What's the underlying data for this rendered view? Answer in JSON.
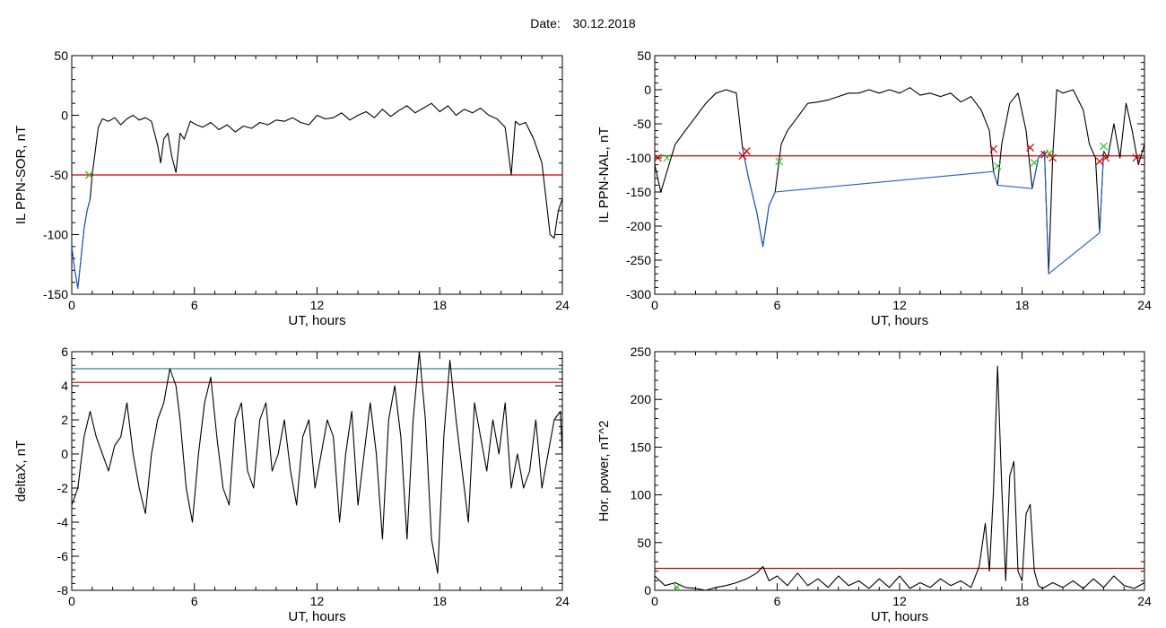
{
  "header": {
    "date_label": "Date:",
    "date_value": "30.12.2018"
  },
  "chart_data": [
    {
      "type": "line",
      "id": "p1",
      "xlabel": "UT, hours",
      "ylabel": "IL PPN-SOR, nT",
      "xlim": [
        0,
        24
      ],
      "ylim": [
        -150,
        50
      ],
      "xticks": [
        0,
        6,
        12,
        18,
        24
      ],
      "yticks": [
        -150,
        -100,
        -50,
        0,
        50
      ],
      "threshold_lines": [
        {
          "y": -50,
          "color": "#cc0000"
        }
      ],
      "series": [
        {
          "color": "#000000",
          "x": [
            0,
            0.15,
            0.3,
            0.45,
            0.6,
            0.75,
            0.9,
            1.0,
            1.15,
            1.3,
            1.5,
            1.8,
            2.1,
            2.4,
            2.7,
            3.0,
            3.3,
            3.6,
            3.9,
            4.2,
            4.35,
            4.5,
            4.7,
            4.9,
            5.1,
            5.3,
            5.5,
            5.8,
            6.1,
            6.4,
            6.8,
            7.2,
            7.6,
            8.0,
            8.4,
            8.8,
            9.2,
            9.6,
            10.0,
            10.4,
            10.8,
            11.2,
            11.6,
            12.0,
            12.4,
            12.8,
            13.2,
            13.6,
            14.0,
            14.4,
            14.8,
            15.2,
            15.6,
            16.0,
            16.4,
            16.8,
            17.2,
            17.6,
            18.0,
            18.4,
            18.8,
            19.2,
            19.6,
            20.0,
            20.4,
            20.8,
            21.2,
            21.5,
            21.7,
            21.9,
            22.2,
            22.6,
            23.0,
            23.2,
            23.4,
            23.6,
            23.8,
            24.0
          ],
          "y": [
            -110,
            -130,
            -145,
            -120,
            -95,
            -80,
            -70,
            -50,
            -30,
            -10,
            -3,
            -5,
            -2,
            -8,
            -3,
            0,
            -4,
            -2,
            -5,
            -25,
            -40,
            -20,
            -15,
            -35,
            -48,
            -15,
            -20,
            -5,
            -8,
            -10,
            -6,
            -12,
            -8,
            -14,
            -9,
            -11,
            -6,
            -8,
            -4,
            -5,
            -2,
            -6,
            -8,
            0,
            -3,
            -2,
            2,
            -4,
            0,
            3,
            -2,
            5,
            -1,
            4,
            8,
            2,
            6,
            10,
            3,
            8,
            0,
            5,
            2,
            6,
            0,
            -3,
            -10,
            -50,
            -5,
            -8,
            -6,
            -20,
            -40,
            -70,
            -100,
            -103,
            -80,
            -70
          ]
        },
        {
          "color": "#1f5fcf",
          "x": [
            0,
            0.15,
            0.3,
            0.45,
            0.6,
            0.75,
            0.9
          ],
          "y": [
            -110,
            -130,
            -145,
            -120,
            -95,
            -80,
            -70
          ]
        }
      ],
      "markers": [
        {
          "x": 0.85,
          "y": -50,
          "color": "#cc0000"
        },
        {
          "x": 0.85,
          "y": -50,
          "color": "#2ec82e"
        }
      ]
    },
    {
      "type": "line",
      "id": "p2",
      "xlabel": "UT, hours",
      "ylabel": "IL PPN-NAL, nT",
      "xlim": [
        0,
        24
      ],
      "ylim": [
        -300,
        50
      ],
      "xticks": [
        0,
        6,
        12,
        18,
        24
      ],
      "yticks": [
        -300,
        -250,
        -200,
        -150,
        -100,
        -50,
        0,
        50
      ],
      "threshold_lines": [
        {
          "y": -97,
          "color": "#cc0000"
        }
      ],
      "series": [
        {
          "color": "#000000",
          "x": [
            0,
            0.3,
            0.6,
            1.0,
            1.5,
            2.0,
            2.5,
            3.0,
            3.5,
            4.0,
            4.3,
            4.6,
            5.0,
            5.3,
            5.6,
            5.9,
            6.2,
            6.5,
            7.0,
            7.5,
            8.0,
            8.5,
            9.0,
            9.5,
            10.0,
            10.5,
            11.0,
            11.5,
            12.0,
            12.5,
            13.0,
            13.5,
            14.0,
            14.5,
            15.0,
            15.5,
            16.0,
            16.4,
            16.6,
            16.8,
            17.0,
            17.4,
            17.8,
            18.2,
            18.5,
            18.8,
            19.1,
            19.3,
            19.5,
            19.7,
            20.0,
            20.5,
            21.0,
            21.3,
            21.6,
            21.8,
            22.0,
            22.2,
            22.5,
            22.8,
            23.1,
            23.4,
            23.7,
            24.0
          ],
          "y": [
            -110,
            -150,
            -120,
            -80,
            -60,
            -40,
            -20,
            -5,
            0,
            -5,
            -85,
            -130,
            -180,
            -230,
            -170,
            -150,
            -80,
            -60,
            -40,
            -20,
            -18,
            -15,
            -10,
            -5,
            -5,
            0,
            -5,
            0,
            -5,
            3,
            -8,
            -5,
            -10,
            -5,
            -18,
            -10,
            -30,
            -60,
            -120,
            -140,
            -80,
            -20,
            -5,
            -60,
            -145,
            -100,
            -90,
            -270,
            -100,
            0,
            -5,
            0,
            -30,
            -80,
            -100,
            -210,
            -90,
            -100,
            -50,
            -100,
            -20,
            -60,
            -110,
            -80
          ]
        },
        {
          "color": "#1f5fcf",
          "x": [
            4.3,
            4.6,
            5.0,
            5.3,
            5.6,
            5.9,
            16.6,
            16.8,
            18.5,
            18.8,
            19.1,
            19.3,
            21.8,
            22.0
          ],
          "y": [
            -85,
            -130,
            -180,
            -230,
            -170,
            -150,
            -120,
            -140,
            -145,
            -100,
            -90,
            -270,
            -210,
            -90
          ]
        }
      ],
      "markers": [
        {
          "x": 0.15,
          "y": -100,
          "color": "#cc0000"
        },
        {
          "x": 4.3,
          "y": -97,
          "color": "#cc0000"
        },
        {
          "x": 4.5,
          "y": -90,
          "color": "#cc0000"
        },
        {
          "x": 6.1,
          "y": -105,
          "color": "#2ec82e"
        },
        {
          "x": 16.6,
          "y": -87,
          "color": "#cc0000"
        },
        {
          "x": 16.8,
          "y": -112,
          "color": "#2ec82e"
        },
        {
          "x": 18.4,
          "y": -85,
          "color": "#cc0000"
        },
        {
          "x": 18.6,
          "y": -107,
          "color": "#2ec82e"
        },
        {
          "x": 19.1,
          "y": -95,
          "color": "#cc0000"
        },
        {
          "x": 19.35,
          "y": -93,
          "color": "#2ec82e"
        },
        {
          "x": 19.5,
          "y": -100,
          "color": "#cc0000"
        },
        {
          "x": 21.8,
          "y": -105,
          "color": "#cc0000"
        },
        {
          "x": 22.0,
          "y": -83,
          "color": "#2ec82e"
        },
        {
          "x": 22.1,
          "y": -100,
          "color": "#cc0000"
        },
        {
          "x": 23.6,
          "y": -100,
          "color": "#cc0000"
        },
        {
          "x": 0.6,
          "y": -100,
          "color": "#2ec82e"
        }
      ]
    },
    {
      "type": "line",
      "id": "p3",
      "xlabel": "UT, hours",
      "ylabel": "deltaX, nT",
      "xlim": [
        0,
        24
      ],
      "ylim": [
        -8,
        6
      ],
      "xticks": [
        0,
        6,
        12,
        18,
        24
      ],
      "yticks": [
        -8,
        -6,
        -4,
        -2,
        0,
        2,
        4,
        6
      ],
      "threshold_lines": [
        {
          "y": 5.0,
          "color": "#2a8a8a"
        },
        {
          "y": 4.2,
          "color": "#cc0000"
        }
      ],
      "series": [
        {
          "color": "#000000",
          "x": [
            0,
            0.3,
            0.6,
            0.9,
            1.2,
            1.5,
            1.8,
            2.1,
            2.4,
            2.7,
            3.0,
            3.3,
            3.6,
            3.9,
            4.2,
            4.5,
            4.8,
            5.1,
            5.3,
            5.6,
            5.9,
            6.2,
            6.5,
            6.8,
            7.1,
            7.4,
            7.7,
            8.0,
            8.3,
            8.6,
            8.9,
            9.2,
            9.5,
            9.8,
            10.1,
            10.4,
            10.7,
            11.0,
            11.3,
            11.6,
            11.9,
            12.2,
            12.5,
            12.8,
            13.1,
            13.4,
            13.7,
            14.0,
            14.3,
            14.6,
            14.9,
            15.2,
            15.5,
            15.8,
            16.1,
            16.4,
            16.7,
            17.0,
            17.3,
            17.6,
            17.9,
            18.2,
            18.5,
            18.8,
            19.1,
            19.4,
            19.7,
            20.0,
            20.3,
            20.6,
            20.9,
            21.2,
            21.5,
            21.8,
            22.1,
            22.4,
            22.7,
            23.0,
            23.3,
            23.6,
            23.9,
            24.0
          ],
          "y": [
            -3,
            -2,
            1,
            2.5,
            1,
            0,
            -1,
            0.5,
            1,
            3,
            0,
            -2,
            -3.5,
            0,
            2,
            3,
            5,
            4,
            2,
            -2,
            -4,
            0,
            3,
            4.5,
            1,
            -2,
            -3,
            2,
            3,
            -1,
            -2,
            2,
            3,
            -1,
            0,
            2,
            -1,
            -3,
            1,
            2,
            -2,
            0,
            2,
            1,
            -4,
            0,
            2.5,
            -3,
            0,
            3,
            0,
            -5,
            2,
            4,
            1,
            -5,
            2,
            6,
            2,
            -5,
            -7,
            1,
            5.5,
            2,
            -1,
            -4,
            3,
            1,
            -1,
            2,
            0,
            3,
            -2,
            0,
            -2,
            -1,
            2,
            -2,
            0,
            2,
            2.5,
            0
          ]
        }
      ],
      "markers": []
    },
    {
      "type": "line",
      "id": "p4",
      "xlabel": "UT, hours",
      "ylabel": "Hor. power, nT^2",
      "xlim": [
        0,
        24
      ],
      "ylim": [
        0,
        250
      ],
      "xticks": [
        0,
        6,
        12,
        18,
        24
      ],
      "yticks": [
        0,
        50,
        100,
        150,
        200,
        250
      ],
      "threshold_lines": [
        {
          "y": 23,
          "color": "#cc0000"
        }
      ],
      "series": [
        {
          "color": "#000000",
          "x": [
            0,
            0.5,
            1.0,
            1.5,
            2.0,
            2.5,
            3.0,
            3.5,
            4.0,
            4.5,
            5.0,
            5.3,
            5.6,
            6.0,
            6.5,
            7.0,
            7.5,
            8.0,
            8.5,
            9.0,
            9.5,
            10.0,
            10.5,
            11.0,
            11.5,
            12.0,
            12.5,
            13.0,
            13.5,
            14.0,
            14.5,
            15.0,
            15.5,
            15.9,
            16.2,
            16.4,
            16.6,
            16.8,
            17.0,
            17.2,
            17.4,
            17.6,
            17.8,
            18.0,
            18.2,
            18.4,
            18.6,
            18.8,
            19.0,
            19.5,
            20.0,
            20.5,
            21.0,
            21.5,
            22.0,
            22.5,
            23.0,
            23.5,
            24.0
          ],
          "y": [
            15,
            5,
            8,
            3,
            2,
            0,
            3,
            5,
            8,
            12,
            18,
            25,
            10,
            15,
            5,
            18,
            5,
            12,
            3,
            15,
            5,
            10,
            2,
            12,
            3,
            15,
            2,
            8,
            3,
            12,
            5,
            10,
            3,
            25,
            70,
            20,
            105,
            235,
            110,
            10,
            120,
            135,
            20,
            10,
            80,
            90,
            20,
            5,
            2,
            8,
            3,
            10,
            2,
            12,
            3,
            15,
            5,
            2,
            8
          ]
        }
      ],
      "markers": [
        {
          "x": 1.1,
          "y": 3,
          "color": "#2ec82e"
        }
      ]
    }
  ]
}
